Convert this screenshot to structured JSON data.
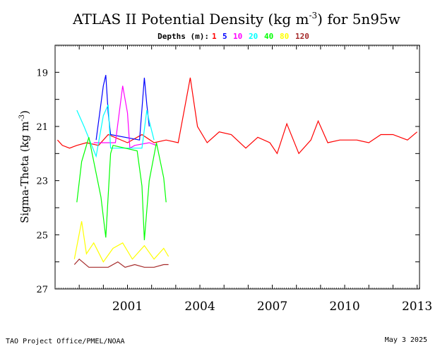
{
  "chart_data": {
    "type": "line",
    "title": "ATLAS II Potential Density (kg m",
    "title_sup": "-3",
    "title_suffix": ") for 5n95w",
    "legend_label": "Depths (m):",
    "ylabel": "Sigma-Theta (kg m",
    "ylabel_sup": "-3",
    "ylabel_suffix": ")",
    "y_inverted": true,
    "ylim": [
      18,
      27
    ],
    "yticks": [
      "19",
      "21",
      "23",
      "25",
      "27"
    ],
    "xlim": [
      1998.0,
      2013.1
    ],
    "xticks": [
      "2001",
      "2004",
      "2007",
      "2010",
      "2013"
    ],
    "grid": false,
    "series": [
      {
        "name": "1",
        "color": "#ff0000",
        "x": [
          1998.1,
          1998.3,
          1998.6,
          1998.9,
          1999.3,
          1999.8,
          2000.2,
          2001.0,
          2001.6,
          2002.1,
          2002.6,
          2003.1,
          2003.6,
          2003.9,
          2004.3,
          2004.8,
          2005.3,
          2005.9,
          2006.4,
          2006.9,
          2007.2,
          2007.6,
          2008.1,
          2008.6,
          2008.9,
          2009.3,
          2009.8,
          2010.5,
          2011.0,
          2011.5,
          2012.0,
          2012.6,
          2013.0
        ],
        "y": [
          21.5,
          21.7,
          21.8,
          21.7,
          21.6,
          21.7,
          21.3,
          21.6,
          21.3,
          21.6,
          21.5,
          21.6,
          19.2,
          21.0,
          21.6,
          21.2,
          21.3,
          21.8,
          21.4,
          21.6,
          22.0,
          20.9,
          22.0,
          21.5,
          20.8,
          21.6,
          21.5,
          21.5,
          21.6,
          21.3,
          21.3,
          21.5,
          21.2
        ]
      },
      {
        "name": "5",
        "color": "#0000ff",
        "x": [
          1999.7,
          2000.0,
          2000.1,
          2000.2,
          2000.3,
          2001.5,
          2001.7,
          2001.8,
          2001.9
        ],
        "y": [
          21.5,
          19.5,
          19.1,
          20.5,
          21.3,
          21.5,
          19.2,
          20.2,
          21.0
        ]
      },
      {
        "name": "10",
        "color": "#ff00ff",
        "x": [
          1999.6,
          2000.5,
          2000.8,
          2001.0,
          2001.1,
          2001.3,
          2001.9,
          2002.2
        ],
        "y": [
          21.6,
          21.6,
          19.5,
          20.5,
          21.8,
          21.7,
          21.6,
          21.7
        ]
      },
      {
        "name": "20",
        "color": "#00ffff",
        "x": [
          1998.9,
          1999.2,
          1999.7,
          2000.0,
          2000.2,
          2000.3,
          2001.6,
          2001.8,
          2001.9,
          2002.1
        ],
        "y": [
          20.4,
          21.0,
          22.1,
          20.6,
          20.2,
          21.8,
          21.8,
          20.4,
          20.8,
          21.5
        ]
      },
      {
        "name": "40",
        "color": "#00ff00",
        "x": [
          1998.9,
          1999.1,
          1999.4,
          1999.9,
          2000.1,
          2000.3,
          2000.4,
          2001.4,
          2001.6,
          2001.7,
          2001.9,
          2002.2,
          2002.5,
          2002.6
        ],
        "y": [
          23.8,
          22.3,
          21.4,
          23.6,
          25.1,
          22.0,
          21.7,
          21.9,
          23.2,
          25.2,
          23.0,
          21.6,
          22.9,
          23.8
        ]
      },
      {
        "name": "80",
        "color": "#ffff00",
        "x": [
          1998.8,
          1999.1,
          1999.3,
          1999.6,
          2000.0,
          2000.4,
          2000.8,
          2001.2,
          2001.7,
          2002.1,
          2002.5,
          2002.7
        ],
        "y": [
          25.9,
          24.5,
          25.7,
          25.3,
          26.0,
          25.5,
          25.3,
          25.9,
          25.4,
          25.9,
          25.5,
          25.8
        ]
      },
      {
        "name": "120",
        "color": "#a52a2a",
        "x": [
          1998.8,
          1999.0,
          1999.4,
          1999.8,
          2000.2,
          2000.6,
          2000.9,
          2001.3,
          2001.7,
          2002.1,
          2002.5,
          2002.7
        ],
        "y": [
          26.1,
          25.9,
          26.2,
          26.2,
          26.2,
          26.0,
          26.2,
          26.1,
          26.2,
          26.2,
          26.1,
          26.1
        ]
      }
    ]
  },
  "footer": {
    "left": "TAO Project Office/PMEL/NOAA",
    "right": "May  3 2025"
  }
}
